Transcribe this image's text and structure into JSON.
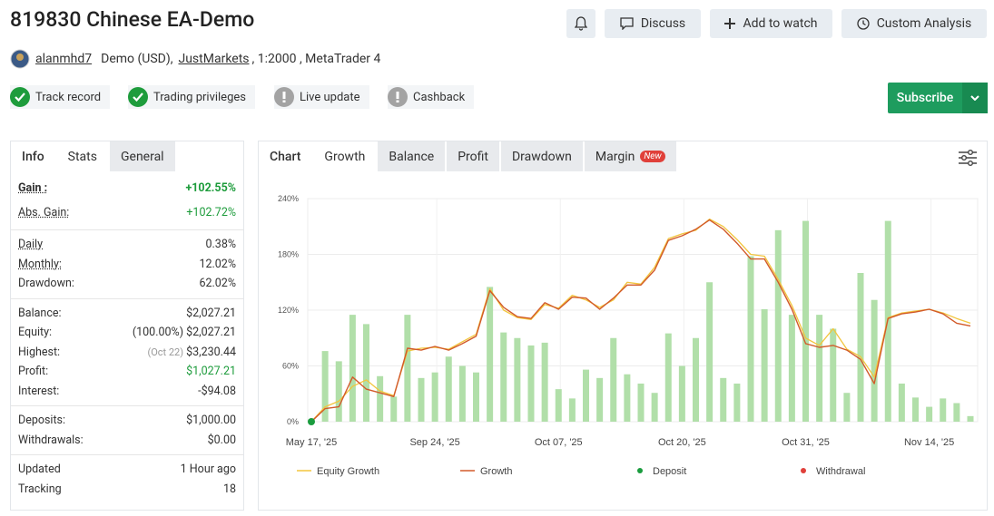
{
  "header": {
    "title": "819830 Chinese EA-Demo",
    "buttons": [
      "Discuss",
      "Add to watch",
      "Custom Analysis"
    ]
  },
  "account": {
    "user": "alanmhd7",
    "type": "Demo (USD),",
    "broker": "JustMarkets",
    "details": ", 1:2000 , MetaTrader 4"
  },
  "badges": [
    {
      "label": "Track record",
      "status": "ok"
    },
    {
      "label": "Trading privileges",
      "status": "ok"
    },
    {
      "label": "Live update",
      "status": "warn"
    },
    {
      "label": "Cashback",
      "status": "warn"
    }
  ],
  "subscribe": "Subscribe",
  "stats": {
    "tabs": [
      "Info",
      "Stats",
      "General"
    ],
    "active_tab": 1,
    "groups": [
      {
        "rows": [
          {
            "label": "Gain :",
            "value": "+102.55%",
            "color": "#1e9c3c",
            "bold": true,
            "hint": true
          },
          {
            "label": "Abs. Gain:",
            "value": "+102.72%",
            "color": "#1e9c3c",
            "hint": true
          }
        ]
      },
      {
        "rows": [
          {
            "label": "Daily",
            "value": "0.38%",
            "hint": true
          },
          {
            "label": "Monthly:",
            "value": "12.02%",
            "hint": true
          },
          {
            "label": "Drawdown:",
            "value": "62.02%"
          }
        ]
      },
      {
        "rows": [
          {
            "label": "Balance:",
            "value": "$2,027.21"
          },
          {
            "label": "Equity:",
            "note": "(100.00%)",
            "value": "$2,027.21"
          },
          {
            "label": "Highest:",
            "note": "(Oct 22)",
            "value": "$3,230.44"
          },
          {
            "label": "Profit:",
            "value": "$1,027.21",
            "color": "#1e9c3c"
          },
          {
            "label": "Interest:",
            "value": "-$94.08"
          }
        ]
      },
      {
        "rows": [
          {
            "label": "Deposits:",
            "value": "$1,000.00"
          },
          {
            "label": "Withdrawals:",
            "value": "$0.00"
          }
        ]
      },
      {
        "rows": [
          {
            "label": "Updated",
            "value": "1 Hour ago"
          },
          {
            "label": "Tracking",
            "value": "18"
          }
        ]
      }
    ]
  },
  "chart_tabs": {
    "tabs": [
      "Chart",
      "Growth",
      "Balance",
      "Profit",
      "Drawdown",
      "Margin"
    ],
    "active_tab": 1,
    "new_badge": "New"
  },
  "chart_data": {
    "type": "line",
    "ylim": [
      0,
      240
    ],
    "yticks": [
      {
        "value": 0,
        "label": "0%"
      },
      {
        "value": 60,
        "label": "60%"
      },
      {
        "value": 120,
        "label": "120%"
      },
      {
        "value": 180,
        "label": "180%"
      },
      {
        "value": 240,
        "label": "240%"
      }
    ],
    "xlim": [
      0,
      48
    ],
    "xticks": [
      {
        "value": 0,
        "label": "May 17, '25"
      },
      {
        "value": 9,
        "label": "Sep 24, '25"
      },
      {
        "value": 18,
        "label": "Oct 07, '25"
      },
      {
        "value": 27,
        "label": "Oct 20, '25"
      },
      {
        "value": 36,
        "label": "Oct 31, '25"
      },
      {
        "value": 45,
        "label": "Nov 14, '25"
      }
    ],
    "grid": true,
    "bars": {
      "color": "#b1dfa9",
      "values": [
        null,
        76,
        65,
        115,
        105,
        49,
        27,
        115,
        47,
        53,
        70,
        60,
        53,
        145,
        96,
        90,
        82,
        85,
        35,
        25,
        56,
        47,
        90,
        51,
        41,
        31,
        95,
        60,
        90,
        150,
        47,
        41,
        178,
        121,
        206,
        115,
        216,
        115,
        100,
        31,
        160,
        131,
        216,
        41,
        26,
        16,
        25,
        20,
        6
      ]
    },
    "series": [
      {
        "name": "Equity Growth",
        "color": "#f2c53d",
        "values": [
          0,
          16,
          22,
          38,
          45,
          33,
          28,
          76,
          79,
          80,
          78,
          86,
          94,
          143,
          120,
          112,
          110,
          126,
          122,
          136,
          131,
          123,
          131,
          150,
          148,
          166,
          197,
          202,
          206,
          218,
          210,
          196,
          180,
          178,
          153,
          125,
          90,
          82,
          100,
          78,
          70,
          48,
          112,
          117,
          119,
          121,
          117,
          111,
          106
        ]
      },
      {
        "name": "Growth",
        "color": "#d25a2a",
        "values": [
          0,
          14,
          16,
          48,
          35,
          31,
          27,
          79,
          77,
          81,
          77,
          84,
          92,
          141,
          123,
          113,
          111,
          128,
          121,
          134,
          133,
          121,
          133,
          147,
          147,
          163,
          195,
          200,
          207,
          217,
          207,
          192,
          175,
          175,
          150,
          121,
          84,
          80,
          82,
          77,
          67,
          41,
          111,
          116,
          118,
          121,
          116,
          106,
          103
        ]
      },
      {
        "name": "Deposit",
        "color": "#1a9c3e",
        "values": [
          0,
          null,
          null,
          null,
          null,
          null,
          null,
          null,
          null,
          null,
          null,
          null,
          null,
          null,
          null,
          null,
          null,
          null,
          null,
          null,
          null,
          null,
          null,
          null,
          null,
          null,
          null,
          null,
          null,
          null,
          null,
          null,
          null,
          null,
          null,
          null,
          null,
          null,
          null,
          null,
          null,
          null,
          null,
          null,
          null,
          null,
          null,
          null,
          null
        ],
        "marker": "dot"
      },
      {
        "name": "Withdrawal",
        "color": "#e0403a",
        "values": [
          null,
          null,
          null,
          null,
          null,
          null,
          null,
          null,
          null,
          null,
          null,
          null,
          null,
          null,
          null,
          null,
          null,
          null,
          null,
          null,
          null,
          null,
          null,
          null,
          null,
          null,
          null,
          null,
          null,
          null,
          null,
          null,
          null,
          null,
          null,
          null,
          null,
          null,
          null,
          null,
          null,
          null,
          null,
          null,
          null,
          null,
          null,
          null,
          null
        ],
        "marker": "dot"
      }
    ]
  }
}
